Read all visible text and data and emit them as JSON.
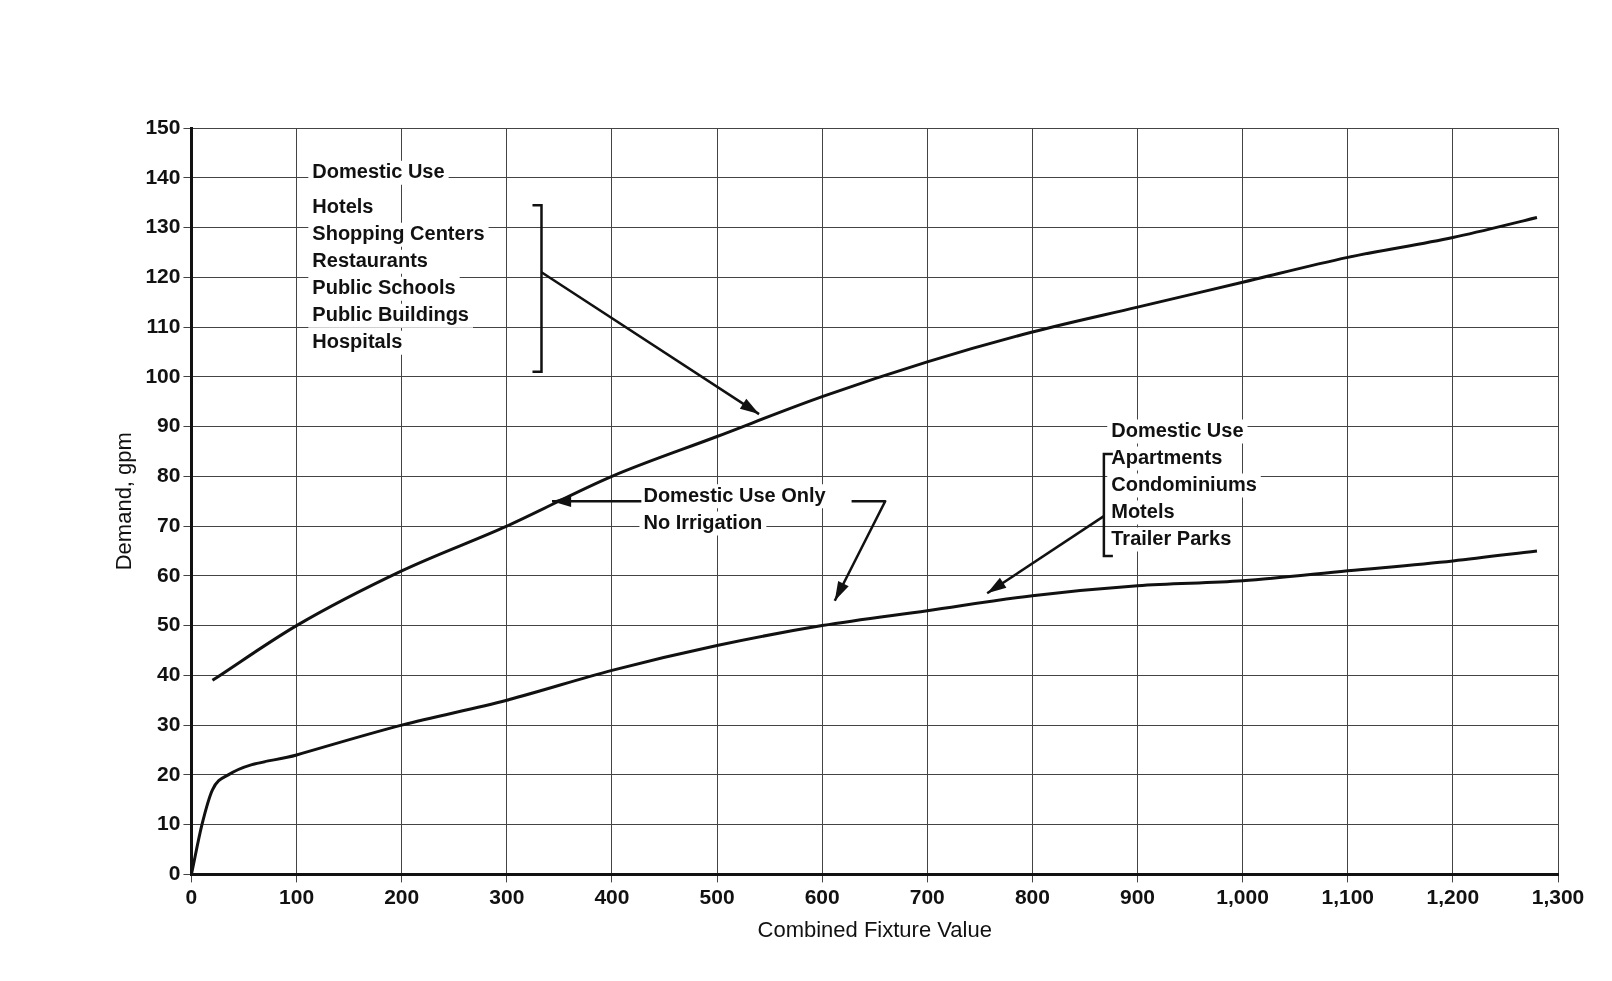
{
  "chart_data": {
    "type": "line",
    "xlabel": "Combined Fixture Value",
    "ylabel": "Demand, gpm",
    "xlim": [
      0,
      1300
    ],
    "ylim": [
      0,
      150
    ],
    "xticks": [
      0,
      100,
      200,
      300,
      400,
      500,
      600,
      700,
      800,
      900,
      {
        "value": 1000,
        "label": "1,000"
      },
      {
        "value": 1100,
        "label": "1,100"
      },
      {
        "value": 1200,
        "label": "1,200"
      },
      {
        "value": 1300,
        "label": "1,300"
      }
    ],
    "yticks": [
      0,
      10,
      20,
      30,
      40,
      50,
      60,
      70,
      80,
      90,
      100,
      110,
      120,
      130,
      140,
      150
    ],
    "grid": true,
    "legend": false,
    "marker": "none",
    "line_style": "solid",
    "series": [
      {
        "color": "#111111",
        "x": [
          20,
          100,
          200,
          300,
          400,
          500,
          600,
          700,
          800,
          900,
          1000,
          1100,
          1200,
          1280
        ],
        "values": [
          39,
          50,
          61,
          70,
          80,
          88,
          96,
          103,
          109,
          114,
          119,
          124,
          128,
          132
        ]
      },
      {
        "color": "#111111",
        "x": [
          0,
          10,
          20,
          35,
          100,
          200,
          300,
          400,
          500,
          600,
          700,
          800,
          900,
          1000,
          1100,
          1200,
          1280
        ],
        "values": [
          0,
          10,
          17,
          20,
          24,
          30,
          35,
          41,
          46,
          50,
          53,
          56,
          58,
          59,
          61,
          63,
          65
        ]
      }
    ],
    "annotations": [
      "Domestic Use\nHotels\nShopping Centers\nRestaurants\nPublic Schools\nPublic Buildings\nHospitals",
      "Domestic Use Only",
      "No Irrigation",
      "Domestic Use\nApartments\nCondominiums\nMotels\nTrailer Parks"
    ]
  }
}
